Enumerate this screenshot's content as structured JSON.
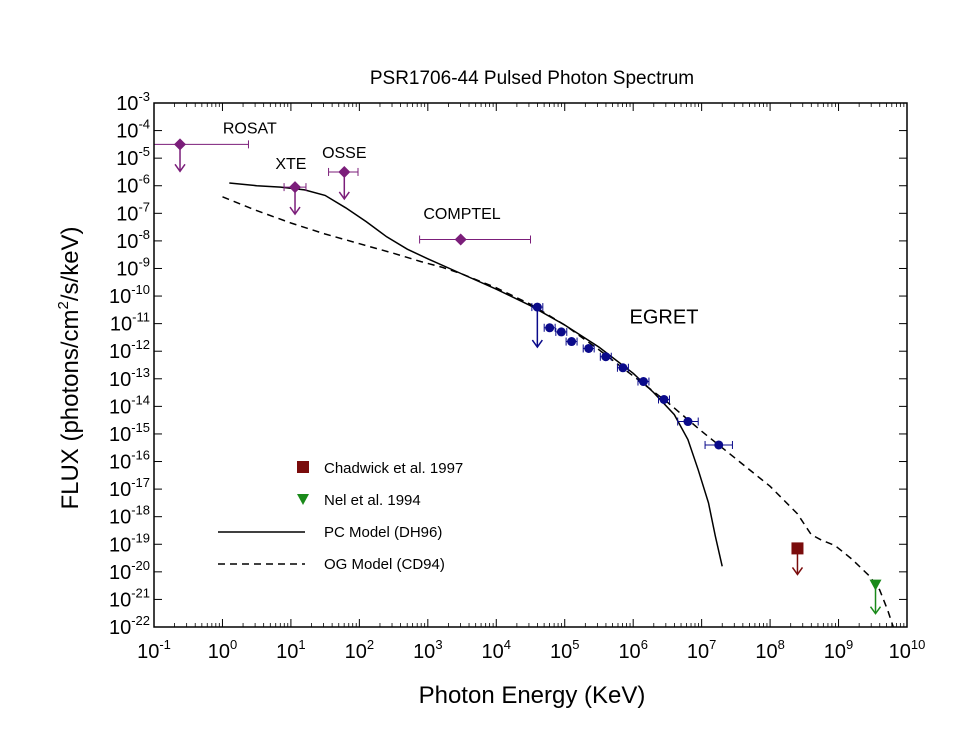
{
  "chart_data": {
    "type": "scatter",
    "title": "PSR1706-44 Pulsed Photon Spectrum",
    "xlabel": "Photon Energy (KeV)",
    "ylabel_parts": [
      "FLUX (photons/cm",
      "2",
      "/s/keV)"
    ],
    "x_scale": "log",
    "y_scale": "log",
    "xlim_exp": [
      -1,
      10
    ],
    "ylim_exp": [
      -22,
      -3
    ],
    "tick_base": "10",
    "x_tick_exponents": [
      "-1",
      "0",
      "1",
      "2",
      "3",
      "4",
      "5",
      "6",
      "7",
      "8",
      "9",
      "10"
    ],
    "y_tick_exponents": [
      "-3",
      "-4",
      "-5",
      "-6",
      "-7",
      "-8",
      "-9",
      "-10",
      "-11",
      "-12",
      "-13",
      "-14",
      "-15",
      "-16",
      "-17",
      "-18",
      "-19",
      "-20",
      "-21",
      "-22"
    ],
    "colors": {
      "diamond": "#7b1e7a",
      "egret": "#0a0a8a",
      "chadwick": "#7a0c0c",
      "nel": "#1a8a1a",
      "line": "#000000"
    },
    "instrument_labels": [
      {
        "text": "ROSAT",
        "x": 0.4,
        "y": -4.1
      },
      {
        "text": "XTE",
        "x": 1.0,
        "y": -5.4
      },
      {
        "text": "OSSE",
        "x": 1.78,
        "y": -5.0
      },
      {
        "text": "COMPTEL",
        "x": 3.5,
        "y": -7.2
      },
      {
        "text": "EGRET",
        "x": 6.45,
        "y": -11.0
      }
    ],
    "diamond_points": [
      {
        "name": "ROSAT",
        "x": -0.62,
        "y": -4.5,
        "x_lo": -1.0,
        "x_hi": 0.38,
        "upper_limit": true
      },
      {
        "name": "XTE",
        "x": 1.06,
        "y": -6.05,
        "x_lo": 0.9,
        "x_hi": 1.22,
        "upper_limit": true
      },
      {
        "name": "OSSE",
        "x": 1.78,
        "y": -5.5,
        "x_lo": 1.55,
        "x_hi": 1.98,
        "upper_limit": true
      },
      {
        "name": "COMPTEL",
        "x": 3.48,
        "y": -7.95,
        "x_lo": 2.88,
        "x_hi": 4.5,
        "upper_limit": false
      }
    ],
    "egret_points": [
      {
        "x": 4.6,
        "y": -10.4,
        "x_lo": 4.52,
        "x_hi": 4.68,
        "upper_limit": true
      },
      {
        "x": 4.78,
        "y": -11.15,
        "x_lo": 4.7,
        "x_hi": 4.86
      },
      {
        "x": 4.95,
        "y": -11.3,
        "x_lo": 4.87,
        "x_hi": 5.03
      },
      {
        "x": 5.1,
        "y": -11.65,
        "x_lo": 5.02,
        "x_hi": 5.18
      },
      {
        "x": 5.35,
        "y": -11.9,
        "x_lo": 5.27,
        "x_hi": 5.43
      },
      {
        "x": 5.6,
        "y": -12.2,
        "x_lo": 5.52,
        "x_hi": 5.68
      },
      {
        "x": 5.85,
        "y": -12.6,
        "x_lo": 5.77,
        "x_hi": 5.93
      },
      {
        "x": 6.15,
        "y": -13.1,
        "x_lo": 6.07,
        "x_hi": 6.23
      },
      {
        "x": 6.45,
        "y": -13.75,
        "x_lo": 6.37,
        "x_hi": 6.53
      },
      {
        "x": 6.8,
        "y": -14.55,
        "x_lo": 6.65,
        "x_hi": 6.95
      },
      {
        "x": 7.25,
        "y": -15.4,
        "x_lo": 7.05,
        "x_hi": 7.45
      }
    ],
    "chadwick_point": {
      "x": 8.4,
      "y": -19.15,
      "upper_limit": true
    },
    "nel_point": {
      "x": 9.54,
      "y": -20.5,
      "upper_limit": true
    },
    "pc_model": [
      [
        0.1,
        -5.9
      ],
      [
        0.5,
        -6.0
      ],
      [
        0.85,
        -6.05
      ],
      [
        1.2,
        -6.15
      ],
      [
        1.5,
        -6.35
      ],
      [
        1.8,
        -6.8
      ],
      [
        2.1,
        -7.3
      ],
      [
        2.4,
        -7.85
      ],
      [
        2.7,
        -8.3
      ],
      [
        3.0,
        -8.65
      ],
      [
        3.5,
        -9.2
      ],
      [
        4.0,
        -9.75
      ],
      [
        4.5,
        -10.35
      ],
      [
        5.0,
        -11.05
      ],
      [
        5.5,
        -11.85
      ],
      [
        6.0,
        -12.8
      ],
      [
        6.3,
        -13.5
      ],
      [
        6.6,
        -14.3
      ],
      [
        6.8,
        -15.2
      ],
      [
        6.95,
        -16.3
      ],
      [
        7.1,
        -17.5
      ],
      [
        7.2,
        -18.7
      ],
      [
        7.3,
        -19.8
      ]
    ],
    "og_model": [
      [
        0.0,
        -6.4
      ],
      [
        0.5,
        -6.9
      ],
      [
        1.0,
        -7.35
      ],
      [
        1.5,
        -7.75
      ],
      [
        2.0,
        -8.1
      ],
      [
        2.5,
        -8.45
      ],
      [
        2.9,
        -8.75
      ],
      [
        3.2,
        -8.95
      ],
      [
        3.5,
        -9.2
      ],
      [
        4.0,
        -9.7
      ],
      [
        4.5,
        -10.3
      ],
      [
        5.0,
        -11.05
      ],
      [
        5.5,
        -11.95
      ],
      [
        6.0,
        -12.9
      ],
      [
        6.5,
        -13.85
      ],
      [
        7.0,
        -14.9
      ],
      [
        7.5,
        -15.9
      ],
      [
        8.0,
        -16.9
      ],
      [
        8.4,
        -17.9
      ],
      [
        8.6,
        -18.65
      ],
      [
        8.75,
        -18.85
      ],
      [
        8.95,
        -19.05
      ],
      [
        9.2,
        -19.55
      ],
      [
        9.45,
        -20.15
      ],
      [
        9.6,
        -20.65
      ],
      [
        9.72,
        -21.4
      ],
      [
        9.8,
        -22.0
      ]
    ],
    "legend": [
      {
        "marker": "square",
        "label": "Chadwick et al. 1997"
      },
      {
        "marker": "triangle",
        "label": "Nel et al. 1994"
      },
      {
        "marker": "solid-line",
        "label": "PC Model (DH96)"
      },
      {
        "marker": "dashed-line",
        "label": "OG Model (CD94)"
      }
    ]
  }
}
